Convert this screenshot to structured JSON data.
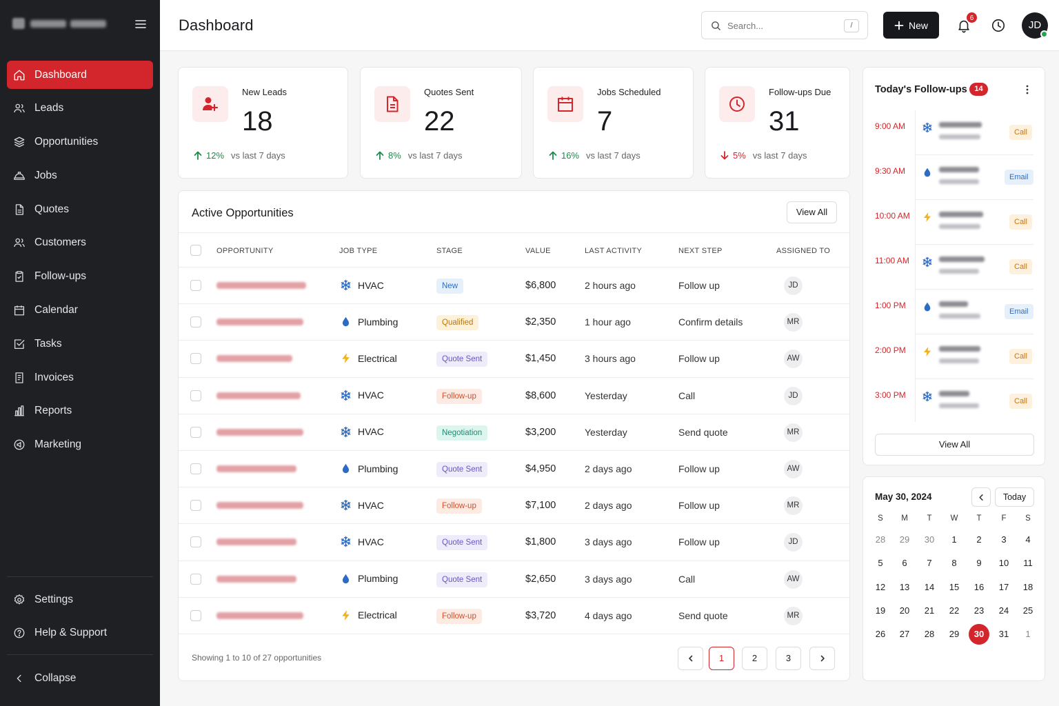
{
  "sidebar": {
    "nav": [
      {
        "label": "Dashboard",
        "icon": "home-icon",
        "active": true
      },
      {
        "label": "Leads",
        "icon": "users-icon"
      },
      {
        "label": "Opportunities",
        "icon": "layers-icon"
      },
      {
        "label": "Jobs",
        "icon": "hard-hat-icon"
      },
      {
        "label": "Quotes",
        "icon": "document-icon"
      },
      {
        "label": "Customers",
        "icon": "users-icon"
      },
      {
        "label": "Follow-ups",
        "icon": "clipboard-icon"
      },
      {
        "label": "Calendar",
        "icon": "calendar-icon"
      },
      {
        "label": "Tasks",
        "icon": "check-square-icon"
      },
      {
        "label": "Invoices",
        "icon": "invoice-icon"
      },
      {
        "label": "Reports",
        "icon": "chart-icon"
      },
      {
        "label": "Marketing",
        "icon": "megaphone-icon"
      }
    ],
    "bottom": [
      {
        "label": "Settings",
        "icon": "gear-icon"
      },
      {
        "label": "Help & Support",
        "icon": "help-icon"
      }
    ],
    "collapse_label": "Collapse"
  },
  "header": {
    "title": "Dashboard",
    "search_placeholder": "Search...",
    "search_shortcut": "/",
    "new_label": "New",
    "notification_count": "6",
    "avatar_initials": "JD"
  },
  "stats": [
    {
      "label": "New Leads",
      "value": "18",
      "change": "12%",
      "direction": "up",
      "compare": "vs last 7 days",
      "icon": "user-plus-icon"
    },
    {
      "label": "Quotes Sent",
      "value": "22",
      "change": "8%",
      "direction": "up",
      "compare": "vs last 7 days",
      "icon": "document-icon"
    },
    {
      "label": "Jobs Scheduled",
      "value": "7",
      "change": "16%",
      "direction": "up",
      "compare": "vs last 7 days",
      "icon": "calendar-icon"
    },
    {
      "label": "Follow-ups Due",
      "value": "31",
      "change": "5%",
      "direction": "down",
      "compare": "vs last 7 days",
      "icon": "clock-icon"
    }
  ],
  "opportunities": {
    "title": "Active Opportunities",
    "view_all": "View All",
    "columns": [
      "OPPORTUNITY",
      "JOB TYPE",
      "STAGE",
      "VALUE",
      "LAST ACTIVITY",
      "NEXT STEP",
      "ASSIGNED TO"
    ],
    "rows": [
      {
        "job_type": "HVAC",
        "job_icon": "snowflake-icon",
        "stage": "New",
        "value": "$6,800",
        "last_activity": "2 hours ago",
        "next_step": "Follow up",
        "assigned": "JD"
      },
      {
        "job_type": "Plumbing",
        "job_icon": "droplet-icon",
        "stage": "Qualified",
        "value": "$2,350",
        "last_activity": "1 hour ago",
        "next_step": "Confirm details",
        "assigned": "MR"
      },
      {
        "job_type": "Electrical",
        "job_icon": "lightning-icon",
        "stage": "Quote Sent",
        "value": "$1,450",
        "last_activity": "3 hours ago",
        "next_step": "Follow up",
        "assigned": "AW"
      },
      {
        "job_type": "HVAC",
        "job_icon": "snowflake-icon",
        "stage": "Follow-up",
        "value": "$8,600",
        "last_activity": "Yesterday",
        "next_step": "Call",
        "assigned": "JD"
      },
      {
        "job_type": "HVAC",
        "job_icon": "snowflake-icon",
        "stage": "Negotiation",
        "value": "$3,200",
        "last_activity": "Yesterday",
        "next_step": "Send quote",
        "assigned": "MR"
      },
      {
        "job_type": "Plumbing",
        "job_icon": "droplet-icon",
        "stage": "Quote Sent",
        "value": "$4,950",
        "last_activity": "2 days ago",
        "next_step": "Follow up",
        "assigned": "AW"
      },
      {
        "job_type": "HVAC",
        "job_icon": "snowflake-icon",
        "stage": "Follow-up",
        "value": "$7,100",
        "last_activity": "2 days ago",
        "next_step": "Follow up",
        "assigned": "MR"
      },
      {
        "job_type": "HVAC",
        "job_icon": "snowflake-icon",
        "stage": "Quote Sent",
        "value": "$1,800",
        "last_activity": "3 days ago",
        "next_step": "Follow up",
        "assigned": "JD"
      },
      {
        "job_type": "Plumbing",
        "job_icon": "droplet-icon",
        "stage": "Quote Sent",
        "value": "$2,650",
        "last_activity": "3 days ago",
        "next_step": "Call",
        "assigned": "AW"
      },
      {
        "job_type": "Electrical",
        "job_icon": "lightning-icon",
        "stage": "Follow-up",
        "value": "$3,720",
        "last_activity": "4 days ago",
        "next_step": "Send quote",
        "assigned": "MR"
      }
    ],
    "showing": "Showing 1 to 10 of 27 opportunities",
    "pages": [
      "1",
      "2",
      "3"
    ],
    "current_page": "1"
  },
  "followups": {
    "title": "Today's Follow-ups",
    "count": "14",
    "items": [
      {
        "time": "9:00 AM",
        "icon": "snowflake-icon",
        "tag": "Call"
      },
      {
        "time": "9:30 AM",
        "icon": "droplet-icon",
        "tag": "Email"
      },
      {
        "time": "10:00 AM",
        "icon": "lightning-icon",
        "tag": "Call"
      },
      {
        "time": "11:00 AM",
        "icon": "snowflake-icon",
        "tag": "Call"
      },
      {
        "time": "1:00 PM",
        "icon": "droplet-icon",
        "tag": "Email"
      },
      {
        "time": "2:00 PM",
        "icon": "lightning-icon",
        "tag": "Call"
      },
      {
        "time": "3:00 PM",
        "icon": "snowflake-icon",
        "tag": "Call"
      }
    ],
    "view_all": "View All"
  },
  "calendar": {
    "title": "May 30, 2024",
    "today_label": "Today",
    "weekdays": [
      "S",
      "M",
      "T",
      "W",
      "T",
      "F",
      "S"
    ],
    "weeks": [
      [
        "28",
        "29",
        "30",
        "1",
        "2",
        "3",
        "4"
      ],
      [
        "5",
        "6",
        "7",
        "8",
        "9",
        "10",
        "11"
      ],
      [
        "12",
        "13",
        "14",
        "15",
        "16",
        "17",
        "18"
      ],
      [
        "19",
        "20",
        "21",
        "22",
        "23",
        "24",
        "25"
      ],
      [
        "26",
        "27",
        "28",
        "29",
        "30",
        "31",
        "1"
      ]
    ],
    "selected": "30"
  },
  "colors": {
    "accent": "#d2262c",
    "sidebar_bg": "#1e2023",
    "up": "#1a8a4a",
    "down": "#d2262c",
    "hvac": "#2d6cc4",
    "plumbing": "#2d6cc4",
    "electrical": "#f2b21b"
  }
}
